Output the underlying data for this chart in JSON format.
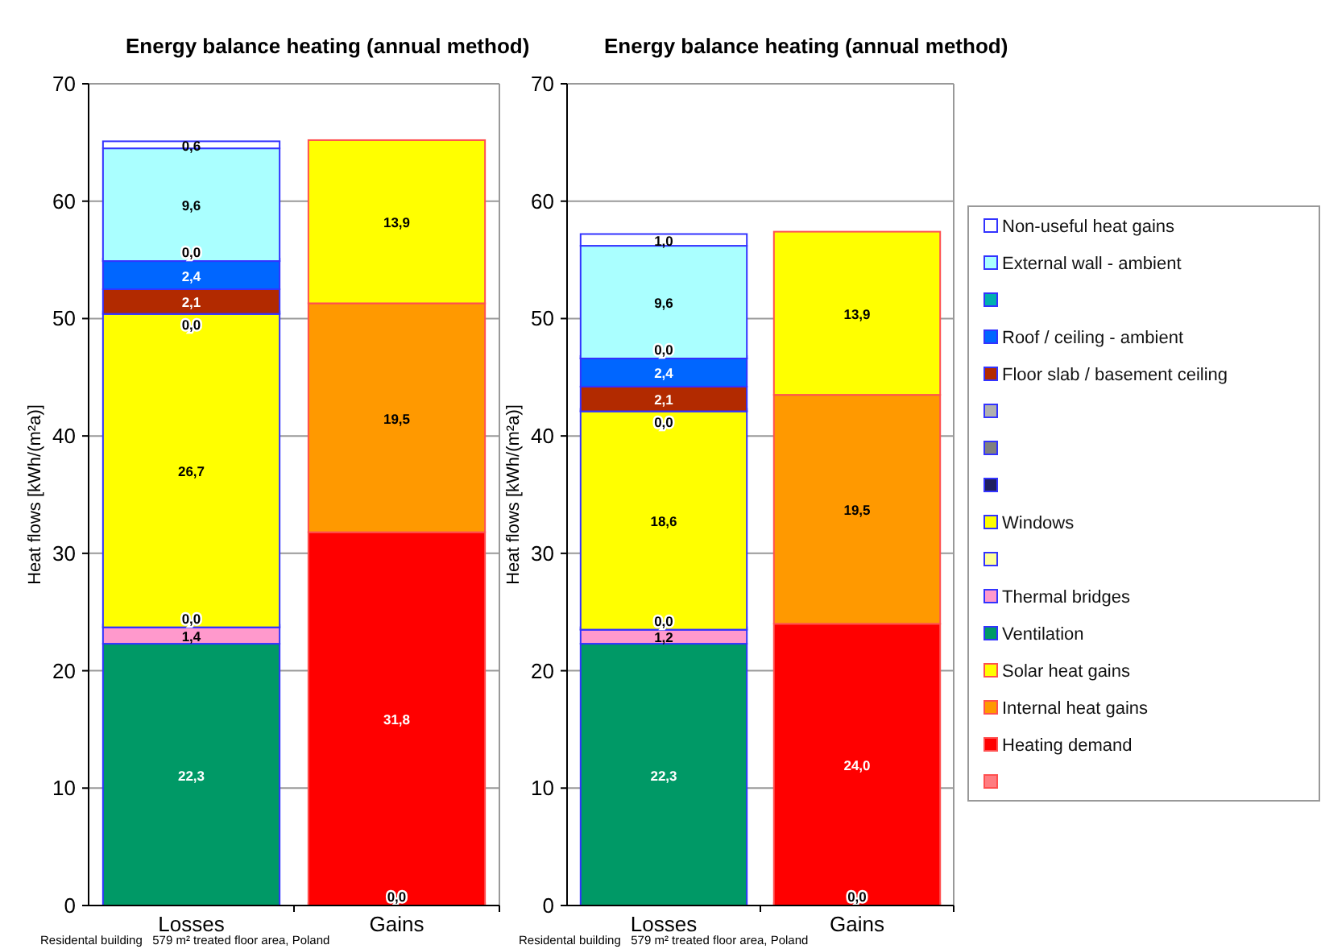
{
  "chart_data": [
    {
      "type": "bar",
      "title": "Energy balance heating (annual method)",
      "ylabel": "Heat flows [kWh/(m²a)]",
      "categories": [
        "Losses",
        "Gains"
      ],
      "stacked": true,
      "ylim": [
        0,
        70
      ],
      "yticks": [
        0,
        10,
        20,
        30,
        40,
        50,
        60,
        70
      ],
      "grid": "y",
      "legend": false,
      "annotations": [
        "Residental building   579 m² treated floor area, Poland"
      ],
      "series": [
        {
          "color": "#ff7c80",
          "values": [
            null,
            0.0
          ],
          "value_labels": [
            null,
            "0,0"
          ]
        },
        {
          "color": "#ff0000",
          "values": [
            null,
            31.8
          ],
          "value_labels": [
            null,
            "31,8"
          ]
        },
        {
          "color": "#ff9900",
          "values": [
            null,
            19.5
          ],
          "value_labels": [
            null,
            "19,5"
          ]
        },
        {
          "color": "#ffff00",
          "values": [
            null,
            13.9
          ],
          "value_labels": [
            null,
            "13,9"
          ]
        },
        {
          "color": "#009966",
          "values": [
            22.3,
            null
          ],
          "value_labels": [
            "22,3",
            null
          ]
        },
        {
          "color": "#ff99cc",
          "values": [
            1.4,
            null
          ],
          "value_labels": [
            "1,4",
            null
          ]
        },
        {
          "color": "#ffff99",
          "values": [
            0.0,
            null
          ],
          "value_labels": [
            "0,0",
            null
          ]
        },
        {
          "color": "#ffff00",
          "values": [
            26.7,
            null
          ],
          "value_labels": [
            "26,7",
            null
          ]
        },
        {
          "color": "#1f1f5f",
          "values": [
            0.0,
            null
          ],
          "value_labels": [
            "0,0",
            null
          ]
        },
        {
          "color": "#808080",
          "values": [
            null,
            null
          ]
        },
        {
          "color": "#b0b0b0",
          "values": [
            null,
            null
          ]
        },
        {
          "color": "#b22a00",
          "values": [
            2.1,
            null
          ],
          "value_labels": [
            "2,1",
            null
          ]
        },
        {
          "color": "#0066ff",
          "values": [
            2.4,
            null
          ],
          "value_labels": [
            "2,4",
            null
          ]
        },
        {
          "color": "#00b0b0",
          "values": [
            0.0,
            null
          ],
          "value_labels": [
            "0,0",
            null
          ]
        },
        {
          "color": "#aaffff",
          "values": [
            9.6,
            null
          ],
          "value_labels": [
            "9,6",
            null
          ]
        },
        {
          "color": "#ffffff",
          "values": [
            0.6,
            null
          ],
          "value_labels": [
            "0,6",
            null
          ]
        }
      ]
    },
    {
      "type": "bar",
      "title": "Energy balance heating (annual method)",
      "ylabel": "Heat flows [kWh/(m²a)]",
      "categories": [
        "Losses",
        "Gains"
      ],
      "stacked": true,
      "ylim": [
        0,
        70
      ],
      "yticks": [
        0,
        10,
        20,
        30,
        40,
        50,
        60,
        70
      ],
      "grid": "y",
      "legend": "right",
      "annotations": [
        "Residental building   579 m² treated floor area, Poland"
      ],
      "series": [
        {
          "color": "#ff7c80",
          "values": [
            null,
            0.0
          ],
          "value_labels": [
            null,
            "0,0"
          ]
        },
        {
          "name": "Heating demand",
          "color": "#ff0000",
          "values": [
            null,
            24.0
          ],
          "value_labels": [
            null,
            "24,0"
          ]
        },
        {
          "name": "Internal heat gains",
          "color": "#ff9900",
          "values": [
            null,
            19.5
          ],
          "value_labels": [
            null,
            "19,5"
          ]
        },
        {
          "name": "Solar heat gains",
          "color": "#ffff00",
          "values": [
            null,
            13.9
          ],
          "value_labels": [
            null,
            "13,9"
          ]
        },
        {
          "name": "Ventilation",
          "color": "#009966",
          "values": [
            22.3,
            null
          ],
          "value_labels": [
            "22,3",
            null
          ]
        },
        {
          "name": "Thermal bridges",
          "color": "#ff99cc",
          "values": [
            1.2,
            null
          ],
          "value_labels": [
            "1,2",
            null
          ]
        },
        {
          "color": "#ffff99",
          "values": [
            0.0,
            null
          ],
          "value_labels": [
            "0,0",
            null
          ]
        },
        {
          "name": "Windows",
          "color": "#ffff00",
          "values": [
            18.6,
            null
          ],
          "value_labels": [
            "18,6",
            null
          ]
        },
        {
          "color": "#1f1f5f",
          "values": [
            0.0,
            null
          ],
          "value_labels": [
            "0,0",
            null
          ]
        },
        {
          "color": "#808080",
          "values": [
            null,
            null
          ]
        },
        {
          "color": "#b0b0b0",
          "values": [
            null,
            null
          ]
        },
        {
          "name": "Floor slab / basement ceiling",
          "color": "#b22a00",
          "values": [
            2.1,
            null
          ],
          "value_labels": [
            "2,1",
            null
          ]
        },
        {
          "name": "Roof / ceiling - ambient",
          "color": "#0066ff",
          "values": [
            2.4,
            null
          ],
          "value_labels": [
            "2,4",
            null
          ]
        },
        {
          "color": "#00b0b0",
          "values": [
            0.0,
            null
          ],
          "value_labels": [
            "0,0",
            null
          ]
        },
        {
          "name": "External wall - ambient",
          "color": "#aaffff",
          "values": [
            9.6,
            null
          ],
          "value_labels": [
            "9,6",
            null
          ]
        },
        {
          "name": "Non-useful heat gains",
          "color": "#ffffff",
          "values": [
            1.0,
            null
          ],
          "value_labels": [
            "1,0",
            null
          ]
        }
      ]
    }
  ]
}
